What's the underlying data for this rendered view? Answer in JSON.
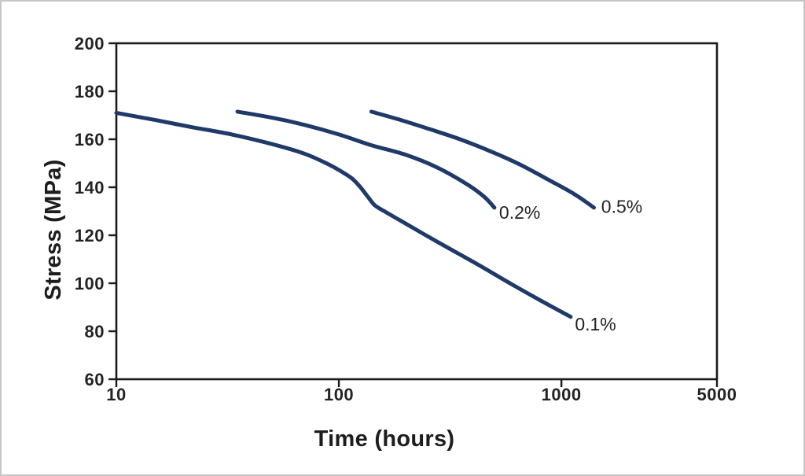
{
  "figure": {
    "background": "#ffffff",
    "border_color": "#c6c6c6"
  },
  "chart_data": {
    "type": "line",
    "title": "",
    "xlabel": "Time (hours)",
    "ylabel": "Stress (MPa)",
    "x_scale": "log",
    "xlim": [
      10,
      5000
    ],
    "ylim": [
      60,
      200
    ],
    "x_ticks": [
      10,
      100,
      1000,
      5000
    ],
    "y_ticks": [
      60,
      80,
      100,
      120,
      140,
      160,
      180,
      200
    ],
    "grid": false,
    "legend": "inline-curve-labels",
    "curve_color": "#1f3a68",
    "axis_color": "#1a1a1a",
    "text_color": "#232323",
    "series": [
      {
        "name": "creep-curve-0-1-percent",
        "label": "0.1%",
        "label_anchor": {
          "t": 1150,
          "stress": 83
        },
        "points": [
          [
            10,
            171
          ],
          [
            15,
            168
          ],
          [
            22,
            165
          ],
          [
            33,
            162
          ],
          [
            50,
            158
          ],
          [
            70,
            154
          ],
          [
            90,
            149.5
          ],
          [
            105,
            146
          ],
          [
            115,
            143.5
          ],
          [
            125,
            140
          ],
          [
            135,
            136
          ],
          [
            145,
            132.5
          ],
          [
            160,
            130
          ],
          [
            190,
            126
          ],
          [
            280,
            117
          ],
          [
            400,
            109
          ],
          [
            600,
            99.5
          ],
          [
            800,
            93
          ],
          [
            1100,
            86
          ]
        ]
      },
      {
        "name": "creep-curve-0-2-percent",
        "label": "0.2%",
        "label_anchor": {
          "t": 525,
          "stress": 129.5
        },
        "points": [
          [
            35,
            171.5
          ],
          [
            50,
            169
          ],
          [
            70,
            166
          ],
          [
            100,
            162
          ],
          [
            140,
            157.5
          ],
          [
            200,
            153.5
          ],
          [
            280,
            148
          ],
          [
            380,
            141
          ],
          [
            450,
            136
          ],
          [
            500,
            131.5
          ]
        ]
      },
      {
        "name": "creep-curve-0-5-percent",
        "label": "0.5%",
        "label_anchor": {
          "t": 1510,
          "stress": 132
        },
        "points": [
          [
            140,
            171.5
          ],
          [
            190,
            168
          ],
          [
            260,
            164
          ],
          [
            350,
            160
          ],
          [
            480,
            155
          ],
          [
            650,
            149.5
          ],
          [
            900,
            142.5
          ],
          [
            1150,
            137
          ],
          [
            1400,
            131.5
          ]
        ]
      }
    ]
  }
}
